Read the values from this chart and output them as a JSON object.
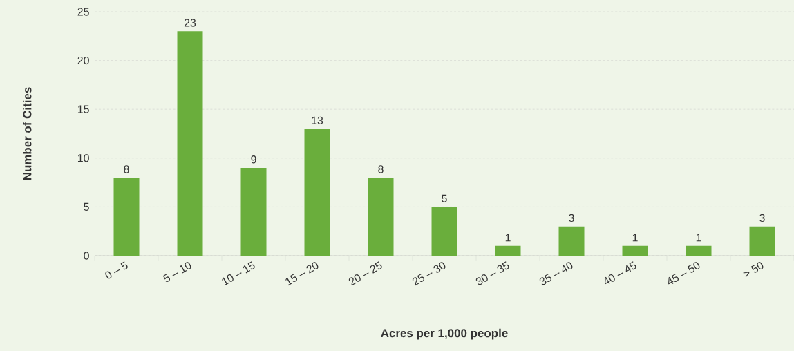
{
  "chart_data": {
    "type": "bar",
    "xlabel": "Acres per 1,000 people",
    "ylabel": "Number of Cities",
    "categories": [
      "0 – 5",
      "5 – 10",
      "10 – 15",
      "15 – 20",
      "20 – 25",
      "25 – 30",
      "30 – 35",
      "35 – 40",
      "40 – 45",
      "45 – 50",
      "> 50"
    ],
    "values": [
      8,
      23,
      9,
      13,
      8,
      5,
      1,
      3,
      1,
      1,
      3
    ],
    "color": "#6aae3c",
    "ylim": [
      0,
      25
    ],
    "yticks": [
      0,
      5,
      10,
      15,
      20,
      25
    ],
    "grid": "y",
    "data_labels": true
  }
}
